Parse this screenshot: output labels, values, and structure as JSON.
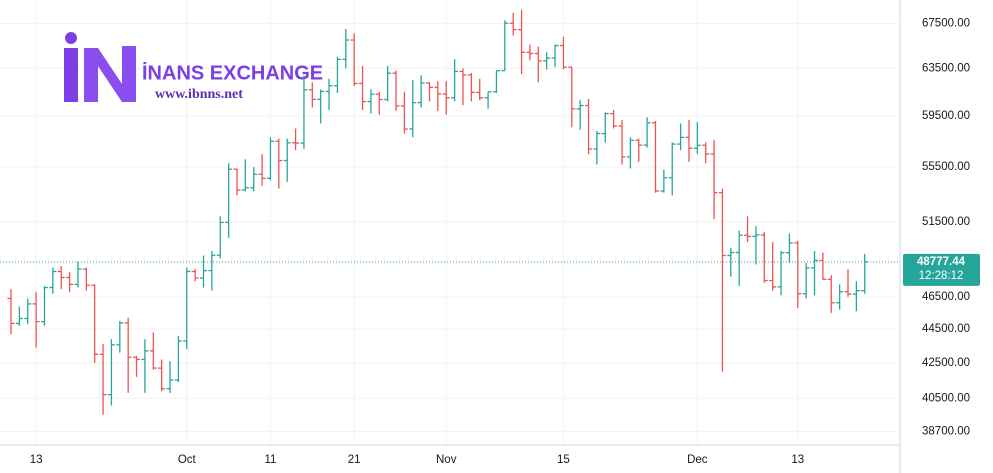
{
  "chart_data": {
    "type": "ohlc",
    "logo_text": "İNANS EXCHANGE",
    "logo_url": "www.ibnns.net",
    "categories": [
      null,
      null,
      null,
      "13",
      null,
      null,
      null,
      null,
      null,
      null,
      null,
      null,
      null,
      null,
      null,
      null,
      null,
      null,
      null,
      null,
      null,
      "Oct",
      null,
      null,
      null,
      null,
      null,
      null,
      null,
      null,
      null,
      "11",
      null,
      null,
      null,
      null,
      null,
      null,
      null,
      null,
      null,
      "21",
      null,
      null,
      null,
      null,
      null,
      null,
      null,
      null,
      null,
      null,
      "Nov",
      null,
      null,
      null,
      null,
      null,
      null,
      null,
      null,
      null,
      null,
      null,
      null,
      null,
      "15",
      null,
      null,
      null,
      null,
      null,
      null,
      null,
      null,
      null,
      null,
      null,
      null,
      null,
      null,
      null,
      "Dec",
      null,
      null,
      null,
      null,
      null,
      null,
      null,
      null,
      null,
      null,
      null,
      "13",
      null,
      null,
      null,
      null,
      null,
      null,
      null,
      null
    ],
    "open": [
      46400,
      44850,
      45150,
      46060,
      44960,
      47100,
      48140,
      47750,
      47300,
      48300,
      47250,
      43000,
      40700,
      43560,
      44880,
      42830,
      42700,
      43200,
      42200,
      41030,
      41520,
      43790,
      48140,
      47710,
      48200,
      49220,
      51470,
      55340,
      53800,
      53960,
      54960,
      54660,
      57490,
      56000,
      57370,
      57350,
      61670,
      60870,
      61530,
      62010,
      64280,
      66000,
      62200,
      60690,
      61300,
      60860,
      63080,
      60330,
      58460,
      60600,
      62250,
      61880,
      61320,
      61000,
      63230,
      62930,
      61450,
      61000,
      61500,
      63300,
      67530,
      66940,
      64900,
      64800,
      64150,
      64400,
      65500,
      63600,
      60090,
      60360,
      56890,
      58100,
      59700,
      58700,
      56280,
      57570,
      57190,
      58960,
      53720,
      54700,
      57270,
      57800,
      56950,
      57180,
      56500,
      53600,
      49200,
      49400,
      50580,
      50500,
      50600,
      47550,
      47140,
      49390,
      50050,
      46700,
      48380,
      48870,
      47630,
      46130,
      46830,
      46680,
      46900
    ],
    "high": [
      47000,
      45900,
      46400,
      46800,
      47200,
      48400,
      48500,
      48100,
      48800,
      48400,
      47300,
      43600,
      43900,
      45000,
      45200,
      42900,
      43900,
      44300,
      42700,
      42600,
      44100,
      48400,
      48300,
      49200,
      49500,
      51900,
      55800,
      55400,
      56100,
      55500,
      56500,
      57800,
      57700,
      57700,
      58500,
      62900,
      62300,
      61700,
      62600,
      64500,
      67000,
      66600,
      63700,
      61700,
      61500,
      63700,
      63300,
      61500,
      62500,
      62900,
      62300,
      62400,
      62400,
      64300,
      63500,
      63100,
      62600,
      61500,
      63300,
      67800,
      68500,
      68800,
      65600,
      65400,
      64900,
      65600,
      66300,
      63600,
      60800,
      60900,
      58300,
      59800,
      60000,
      59200,
      57800,
      57700,
      59400,
      59100,
      55300,
      57400,
      58900,
      59200,
      59000,
      57400,
      57600,
      53900,
      49700,
      50900,
      51900,
      51200,
      50800,
      50100,
      49500,
      50700,
      50200,
      48700,
      49500,
      49400,
      47900,
      47300,
      48300,
      47500,
      49300
    ],
    "low": [
      44200,
      44700,
      44800,
      43400,
      44700,
      46700,
      47000,
      46800,
      47100,
      46900,
      42500,
      39600,
      40100,
      43100,
      40800,
      41700,
      40800,
      42100,
      40900,
      40800,
      41400,
      43300,
      47500,
      47100,
      46900,
      49000,
      50400,
      53400,
      53700,
      53700,
      54100,
      54500,
      53900,
      54400,
      56800,
      56900,
      60200,
      58900,
      60000,
      61400,
      63500,
      62000,
      60000,
      59700,
      59600,
      60700,
      59900,
      58100,
      57800,
      60200,
      60700,
      59900,
      59600,
      60700,
      60400,
      60700,
      60800,
      60100,
      61400,
      63300,
      66400,
      63000,
      64200,
      62300,
      63400,
      63600,
      63400,
      58600,
      58400,
      56500,
      55700,
      57400,
      58500,
      55700,
      55400,
      55900,
      57000,
      53600,
      53600,
      53400,
      56800,
      55900,
      56500,
      55800,
      51700,
      42000,
      47800,
      47200,
      50100,
      48600,
      47400,
      46900,
      46600,
      48700,
      45800,
      46400,
      46600,
      47600,
      45500,
      45700,
      46500,
      45600,
      46700
    ],
    "close": [
      44850,
      45150,
      46060,
      44960,
      47100,
      48140,
      47750,
      47300,
      48300,
      47250,
      43000,
      40700,
      43560,
      44880,
      42830,
      42700,
      43200,
      42200,
      41030,
      41520,
      43790,
      48140,
      47710,
      48200,
      49220,
      51470,
      55340,
      53800,
      53960,
      54960,
      54660,
      57490,
      56000,
      57370,
      57350,
      61670,
      60870,
      61530,
      62010,
      64280,
      66000,
      62200,
      60690,
      61300,
      60860,
      63080,
      60330,
      58460,
      60600,
      62250,
      61880,
      61320,
      61000,
      63230,
      62930,
      61450,
      61000,
      61500,
      63300,
      67530,
      66940,
      64900,
      64800,
      64150,
      64400,
      65500,
      63600,
      60090,
      60360,
      56890,
      58100,
      59700,
      58700,
      56280,
      57570,
      57190,
      58960,
      53720,
      54700,
      57270,
      57800,
      56950,
      57180,
      56500,
      53600,
      49200,
      49400,
      50580,
      50500,
      50600,
      47550,
      47140,
      49390,
      50050,
      46700,
      48380,
      48870,
      47630,
      46130,
      46830,
      46680,
      46900,
      48777.44
    ],
    "up_color": "#26a69a",
    "down_color": "#ef5350",
    "yscale": "log",
    "ylim": [
      38000,
      69700
    ],
    "yticks": [
      {
        "value": 38700,
        "label": "38700.00"
      },
      {
        "value": 40500,
        "label": "40500.00"
      },
      {
        "value": 42500,
        "label": "42500.00"
      },
      {
        "value": 44500,
        "label": "44500.00"
      },
      {
        "value": 46500,
        "label": "46500.00"
      },
      {
        "value": 51500,
        "label": "51500.00"
      },
      {
        "value": 55500,
        "label": "55500.00"
      },
      {
        "value": 59500,
        "label": "59500.00"
      },
      {
        "value": 63500,
        "label": "63500.00"
      },
      {
        "value": 67500,
        "label": "67500.00"
      }
    ],
    "grid": true,
    "last_price": 48777.44,
    "countdown": "12:28:12"
  }
}
